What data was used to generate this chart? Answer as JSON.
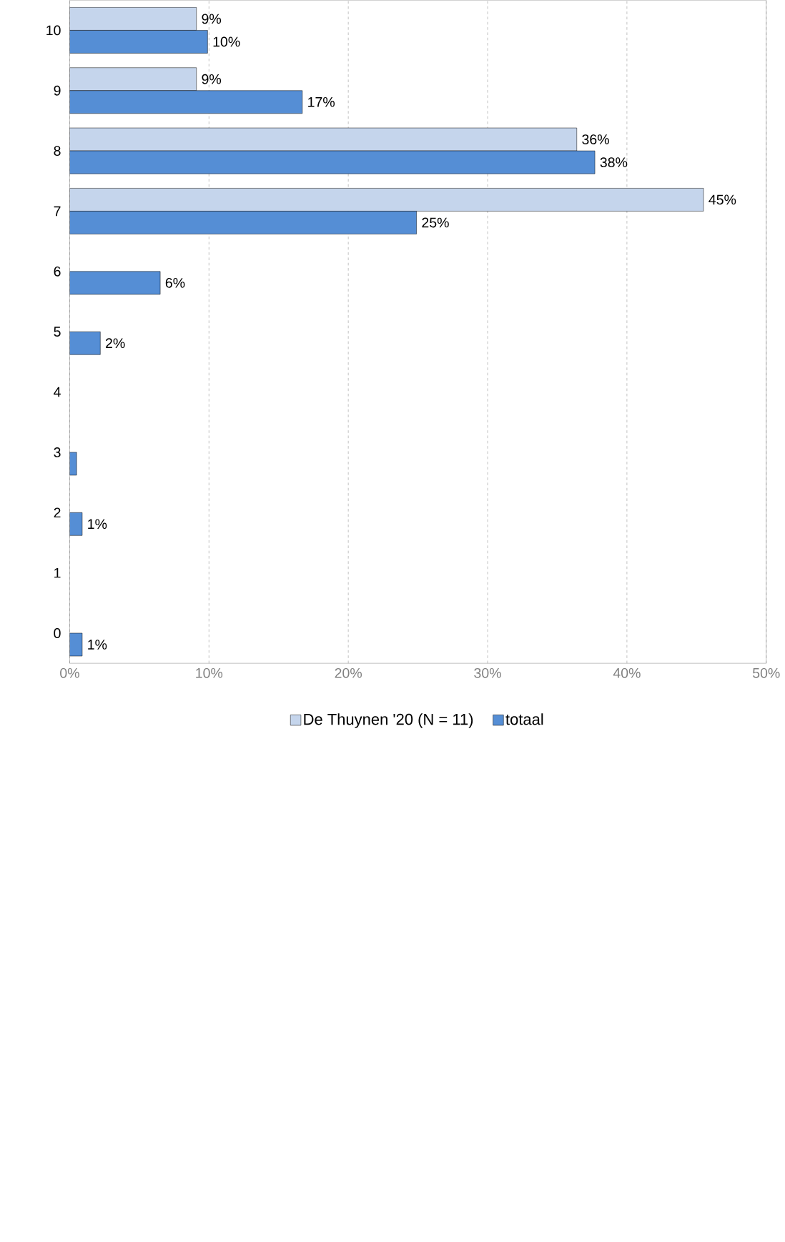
{
  "chart_data": {
    "type": "bar",
    "orientation": "horizontal",
    "categories": [
      "10",
      "9",
      "8",
      "7",
      "6",
      "5",
      "4",
      "3",
      "2",
      "1",
      "0"
    ],
    "series": [
      {
        "name": "De Thuynen '20 (N = 11)",
        "color": "#c5d5ec",
        "values": [
          9.1,
          9.1,
          36.4,
          45.5,
          null,
          null,
          null,
          null,
          null,
          null,
          null
        ],
        "value_labels": [
          "9%",
          "9%",
          "36%",
          "45%",
          null,
          null,
          null,
          null,
          null,
          null,
          null
        ]
      },
      {
        "name": "totaal",
        "color": "#558ed5",
        "values": [
          9.9,
          16.7,
          37.7,
          24.9,
          6.5,
          2.2,
          null,
          0.5,
          0.9,
          null,
          0.9
        ],
        "value_labels": [
          "10%",
          "17%",
          "38%",
          "25%",
          "6%",
          "2%",
          null,
          null,
          "1%",
          null,
          "1%"
        ]
      }
    ],
    "xlim": [
      0,
      50
    ],
    "xticks": [
      {
        "value": 0,
        "label": "0%"
      },
      {
        "value": 10,
        "label": "10%"
      },
      {
        "value": 20,
        "label": "20%"
      },
      {
        "value": 30,
        "label": "30%"
      },
      {
        "value": 40,
        "label": "40%"
      },
      {
        "value": 50,
        "label": "50%"
      }
    ],
    "grid": "x",
    "legend": "bottom"
  }
}
